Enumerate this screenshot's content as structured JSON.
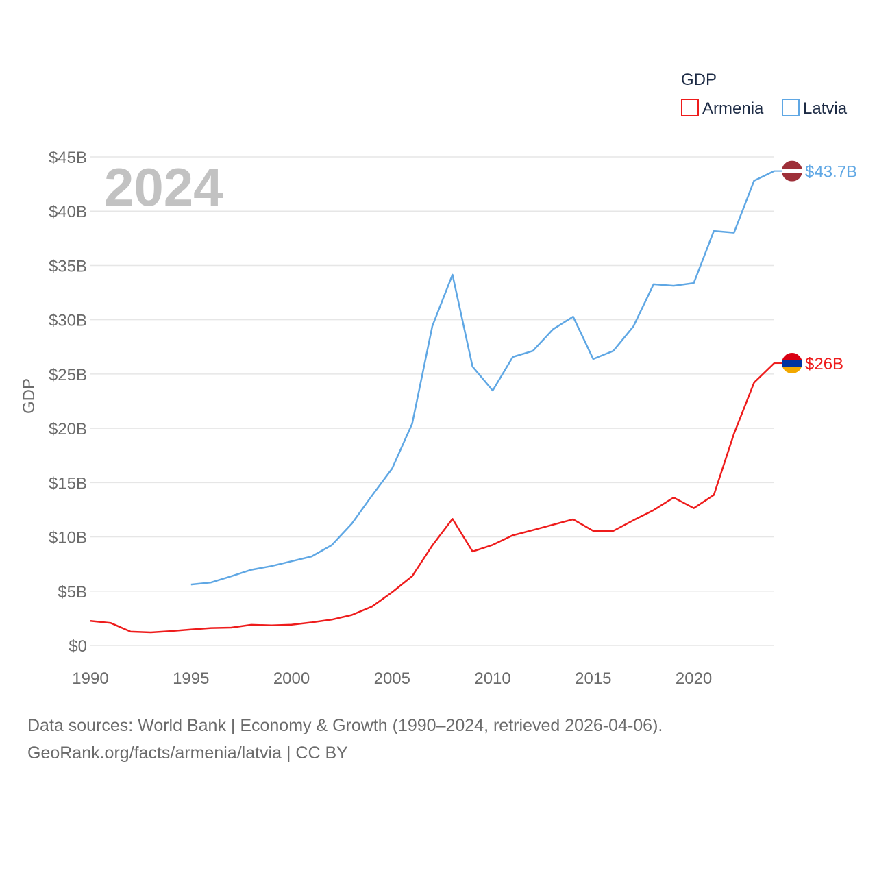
{
  "chart_data": {
    "type": "line",
    "ylabel": "GDP",
    "year_label": "2024",
    "legend": {
      "title": "GDP",
      "position": "top-right",
      "items": [
        {
          "name": "Armenia",
          "color": "#ee1c1c"
        },
        {
          "name": "Latvia",
          "color": "#5fa7e4"
        }
      ]
    },
    "x_ticks": [
      1990,
      1995,
      2000,
      2005,
      2010,
      2015,
      2020
    ],
    "xlim": [
      1990,
      2024
    ],
    "y_ticks": [
      {
        "value": 0,
        "label": "$0"
      },
      {
        "value": 5,
        "label": "$5B"
      },
      {
        "value": 10,
        "label": "$10B"
      },
      {
        "value": 15,
        "label": "$15B"
      },
      {
        "value": 20,
        "label": "$20B"
      },
      {
        "value": 25,
        "label": "$25B"
      },
      {
        "value": 30,
        "label": "$30B"
      },
      {
        "value": 35,
        "label": "$35B"
      },
      {
        "value": 40,
        "label": "$40B"
      },
      {
        "value": 45,
        "label": "$45B"
      }
    ],
    "ylim": [
      0,
      45
    ],
    "units": "billions USD",
    "series": [
      {
        "name": "Armenia",
        "color": "#ee1c1c",
        "end_label": "$26B",
        "flag": "armenia-flag",
        "x": [
          1990,
          1991,
          1992,
          1993,
          1994,
          1995,
          1996,
          1997,
          1998,
          1999,
          2000,
          2001,
          2002,
          2003,
          2004,
          2005,
          2006,
          2007,
          2008,
          2009,
          2010,
          2011,
          2012,
          2013,
          2014,
          2015,
          2016,
          2017,
          2018,
          2019,
          2020,
          2021,
          2022,
          2023,
          2024
        ],
        "values": [
          2.26,
          2.07,
          1.27,
          1.2,
          1.32,
          1.47,
          1.6,
          1.64,
          1.9,
          1.85,
          1.91,
          2.12,
          2.38,
          2.81,
          3.58,
          4.9,
          6.38,
          9.21,
          11.66,
          8.65,
          9.26,
          10.14,
          10.62,
          11.12,
          11.61,
          10.55,
          10.55,
          11.53,
          12.46,
          13.62,
          12.64,
          13.86,
          19.51,
          24.21,
          26.0
        ]
      },
      {
        "name": "Latvia",
        "color": "#5fa7e4",
        "end_label": "$43.7B",
        "flag": "latvia-flag",
        "x": [
          1995,
          1996,
          1997,
          1998,
          1999,
          2000,
          2001,
          2002,
          2003,
          2004,
          2005,
          2006,
          2007,
          2008,
          2009,
          2010,
          2011,
          2012,
          2013,
          2014,
          2015,
          2016,
          2017,
          2018,
          2019,
          2020,
          2021,
          2022,
          2023,
          2024
        ],
        "values": [
          5.61,
          5.8,
          6.37,
          6.97,
          7.31,
          7.75,
          8.2,
          9.24,
          11.23,
          13.8,
          16.29,
          20.43,
          29.42,
          34.15,
          25.68,
          23.48,
          26.57,
          27.13,
          29.12,
          30.28,
          26.38,
          27.13,
          29.39,
          33.27,
          33.13,
          33.38,
          38.18,
          38.02,
          42.81,
          43.7
        ]
      }
    ]
  },
  "sources": {
    "line1": "Data sources: World Bank | Economy & Growth (1990–2024, retrieved 2026-04-06).",
    "line2": "GeoRank.org/facts/armenia/latvia | CC BY"
  }
}
